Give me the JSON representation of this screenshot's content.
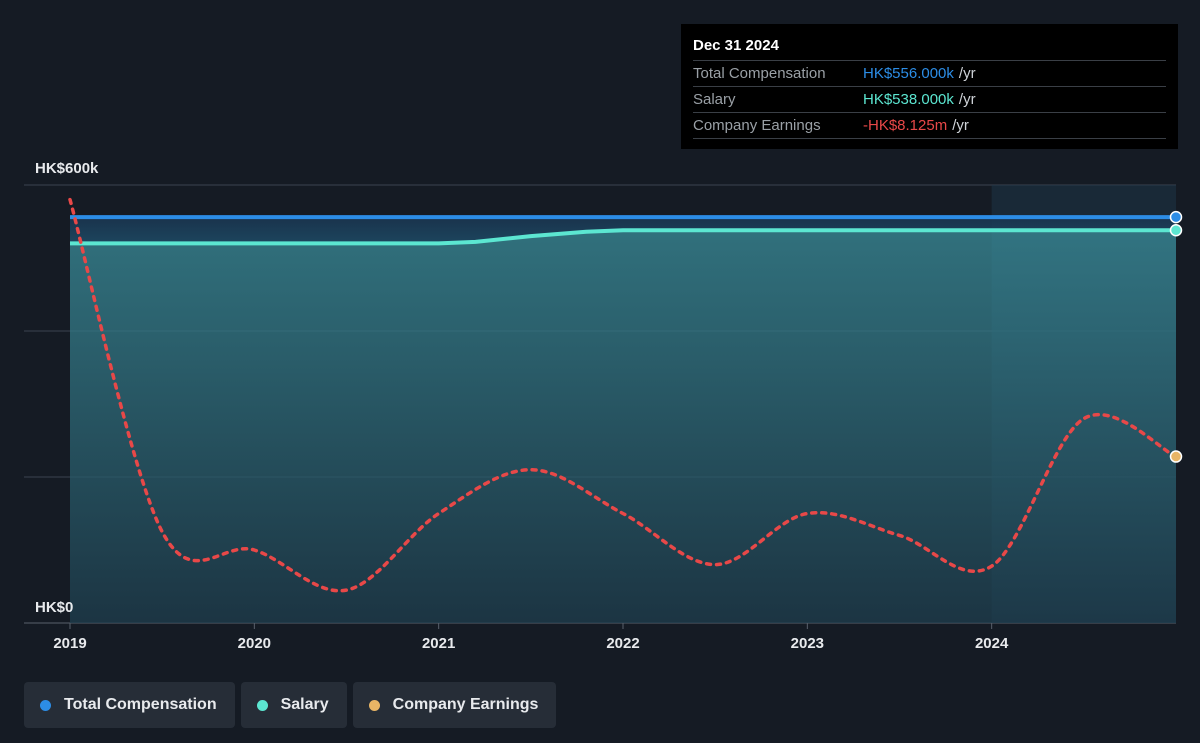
{
  "tooltip": {
    "date": "Dec 31 2024",
    "rows": [
      {
        "label": "Total Compensation",
        "value": "HK$556.000k",
        "unit": "/yr",
        "color": "#2c8de6"
      },
      {
        "label": "Salary",
        "value": "HK$538.000k",
        "unit": "/yr",
        "color": "#5ce6d1"
      },
      {
        "label": "Company Earnings",
        "value": "-HK$8.125m",
        "unit": "/yr",
        "color": "#e84848"
      }
    ]
  },
  "legend": [
    {
      "label": "Total Compensation",
      "color": "#2c8de6"
    },
    {
      "label": "Salary",
      "color": "#5ce6d1"
    },
    {
      "label": "Company Earnings",
      "color": "#e8b565"
    }
  ],
  "chart_data": {
    "type": "line",
    "y_tick_labels": [
      "HK$600k",
      "HK$0"
    ],
    "x_tick_labels": [
      "2019",
      "2020",
      "2021",
      "2022",
      "2023",
      "2024"
    ],
    "ylim": [
      0,
      600
    ],
    "xlim": [
      2019.0,
      2025.0
    ],
    "grid": true,
    "legend_position": "bottom",
    "series": [
      {
        "name": "Total Compensation",
        "color": "#2c8de6",
        "x": [
          2019.0,
          2025.0
        ],
        "y": [
          556,
          556
        ]
      },
      {
        "name": "Salary",
        "color": "#5ce6d1",
        "x": [
          2019.0,
          2021.0,
          2021.2,
          2021.5,
          2021.8,
          2022.0,
          2025.0
        ],
        "y": [
          520,
          520,
          522,
          530,
          536,
          538,
          538
        ]
      },
      {
        "name": "Company Earnings",
        "color": "#e84848",
        "end_marker_color": "#e8b565",
        "x": [
          2019.0,
          2019.5,
          2020.0,
          2020.5,
          2021.0,
          2021.5,
          2022.0,
          2022.5,
          2023.0,
          2023.5,
          2024.0,
          2024.5,
          2025.0
        ],
        "y": [
          580,
          125,
          100,
          45,
          150,
          210,
          150,
          80,
          150,
          120,
          78,
          280,
          228
        ]
      }
    ],
    "forecast_shade_start": 2024.0
  }
}
